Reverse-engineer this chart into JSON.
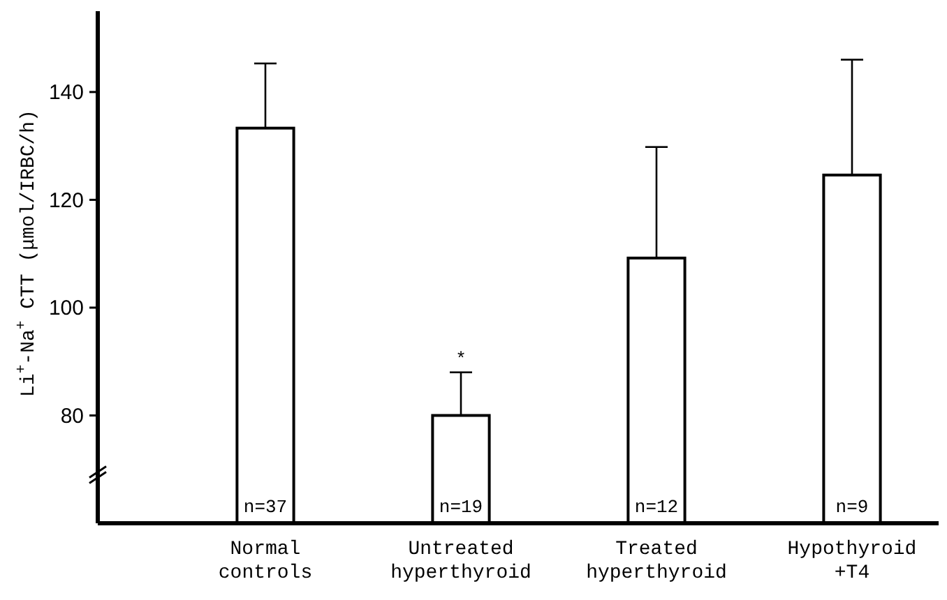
{
  "chart_data": {
    "type": "bar",
    "ylabel": "Li$^{+}$-Na$^{+}$ CTT (μmol/IRBC/h)",
    "categories": [
      "Normal controls",
      "Untreated hyperthyroid",
      "Treated hyperthyroid",
      "Hypothyroid +T4"
    ],
    "values": [
      133.3,
      80,
      109.2,
      124.6
    ],
    "errors": [
      [
        133.3,
        145.3
      ],
      [
        80,
        88
      ],
      [
        109.2,
        129.8
      ],
      [
        124.6,
        146
      ]
    ],
    "color": "#ffffff",
    "ylim": [
      60,
      155
    ],
    "yticks": [
      80,
      100,
      120,
      140
    ],
    "grid": false,
    "annotations": [
      {
        "text": "*",
        "x": "Untreated hyperthyroid",
        "y": 88
      },
      "n=37",
      "n=19",
      "n=12",
      "n=9"
    ]
  }
}
